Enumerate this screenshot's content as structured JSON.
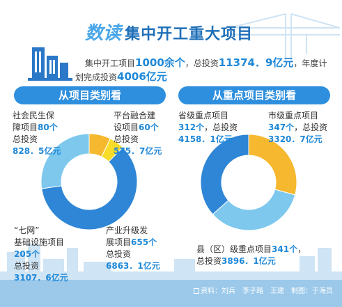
{
  "header": {
    "title_light": "数读",
    "title_dark": "集中开工重大项目",
    "summary_prefix": "集中开工项目",
    "total_count": "1000余个",
    "summary_mid": "，总投资",
    "total_investment": "11374．9亿元",
    "summary_suffix": "，年度计",
    "summary_line2_prefix": "划完成投资",
    "annual_investment": "4006亿元"
  },
  "left_section": {
    "heading": "从项目类别看"
  },
  "right_section": {
    "heading": "从重点项目类别看"
  },
  "left_labels": {
    "social": {
      "line1": "社会民生保",
      "line2a": "障项目",
      "count": "80个",
      "line3": "总投资",
      "invest": "828．5亿元"
    },
    "platform": {
      "line1": "平台融合建",
      "line2a": "设项目",
      "count": "60个",
      "line3": "总投资",
      "invest": "575．7亿元"
    },
    "qiwang": {
      "line1": "“七网”",
      "line2": "基础设施项目",
      "count": "205个",
      "line3": "总投资",
      "invest": "3107．6亿元"
    },
    "industry": {
      "line1": "产业升级发",
      "line2a": "展项目",
      "count": "655个",
      "line3": "总投资",
      "invest": "6863．1亿元"
    }
  },
  "right_labels": {
    "province": {
      "line1": "省级重点项目",
      "count": "312个",
      "line2b": "，总投资",
      "invest": "4158．1亿元"
    },
    "city": {
      "line1": "市级重点项目",
      "count": "347个",
      "line2b": "，总投资",
      "invest": "3320．7亿元"
    },
    "county": {
      "line1a": "县（区）级重点项目",
      "count": "341个",
      "line1b": "，",
      "line2a": "总投资",
      "invest": "3896．1亿元"
    }
  },
  "footer": {
    "credit": "资料：刘兵　李子路　王建　制图：于海员"
  },
  "colors": {
    "dark_blue": "#2f86d6",
    "light_blue": "#7ec8ee",
    "yellow": "#f5b82e",
    "accent": "#1e88d8"
  },
  "chart_data": [
    {
      "type": "pie",
      "donut": true,
      "categories": [
        "社会民生保障项目",
        "平台融合建设项目",
        "产业升级发展项目",
        "“七网”基础设施项目"
      ],
      "values": [
        828.5,
        575.7,
        6863.1,
        3107.6
      ],
      "colors": [
        "#f5b82e",
        "#f7dc2a",
        "#2f86d6",
        "#7ec8ee"
      ]
    },
    {
      "type": "pie",
      "donut": true,
      "categories": [
        "市级重点项目",
        "县（区）级重点项目",
        "省级重点项目"
      ],
      "values": [
        3320.7,
        3896.1,
        4158.1
      ],
      "colors": [
        "#f5b82e",
        "#7ec8ee",
        "#2f86d6"
      ]
    }
  ]
}
